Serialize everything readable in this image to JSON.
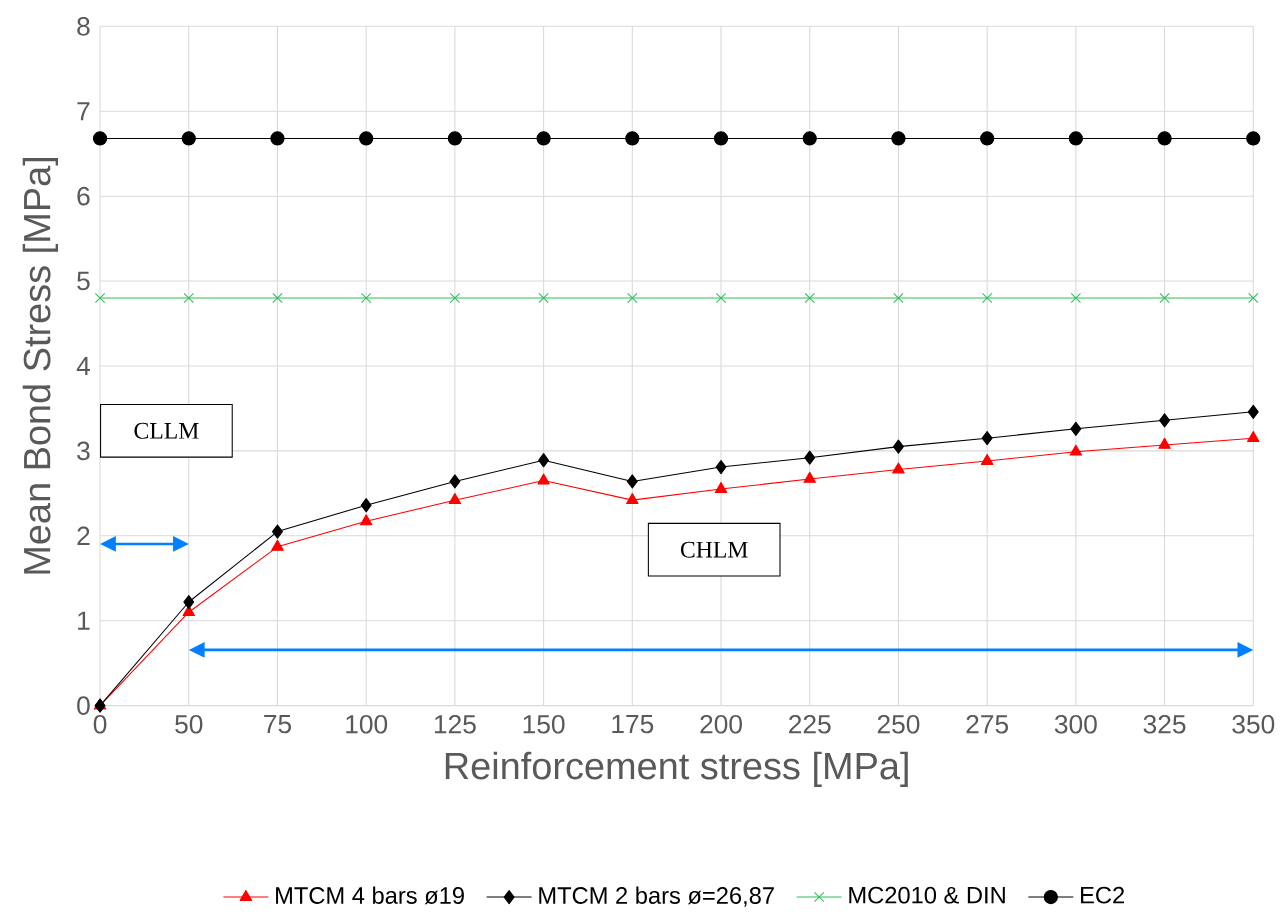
{
  "chart_data": {
    "type": "line",
    "xlabel": "Reinforcement stress [MPa]",
    "ylabel": "Mean Bond Stress [MPa]",
    "categories": [
      "0",
      "50",
      "75",
      "100",
      "125",
      "150",
      "175",
      "200",
      "225",
      "250",
      "275",
      "300",
      "325",
      "350"
    ],
    "series": [
      {
        "name": "MTCM 4 bars ø19",
        "color": "#ff0000",
        "marker": "triangle",
        "values": [
          0,
          1.1,
          1.87,
          2.17,
          2.42,
          2.65,
          2.42,
          2.55,
          2.67,
          2.78,
          2.88,
          2.99,
          3.07,
          3.15
        ]
      },
      {
        "name": "MTCM 2 bars ø=26,87",
        "color": "#000000",
        "marker": "diamond",
        "values": [
          0,
          1.22,
          2.05,
          2.36,
          2.64,
          2.89,
          2.64,
          2.81,
          2.92,
          3.05,
          3.15,
          3.26,
          3.36,
          3.46
        ]
      },
      {
        "name": "MC2010 & DIN",
        "color": "#2dbf5a",
        "marker": "cross",
        "values": [
          4.8,
          4.8,
          4.8,
          4.8,
          4.8,
          4.8,
          4.8,
          4.8,
          4.8,
          4.8,
          4.8,
          4.8,
          4.8,
          4.8
        ]
      },
      {
        "name": "EC2",
        "color": "#000000",
        "marker": "circle",
        "values": [
          6.68,
          6.68,
          6.68,
          6.68,
          6.68,
          6.68,
          6.68,
          6.68,
          6.68,
          6.68,
          6.68,
          6.68,
          6.68,
          6.68
        ]
      }
    ],
    "ylim": [
      0,
      8
    ],
    "yticks": [
      0,
      1,
      2,
      3,
      4,
      5,
      6,
      7,
      8
    ],
    "grid": true,
    "legend": "bottom",
    "line_style": "solid",
    "annotations": [
      "CLLM",
      "CHLM"
    ]
  }
}
